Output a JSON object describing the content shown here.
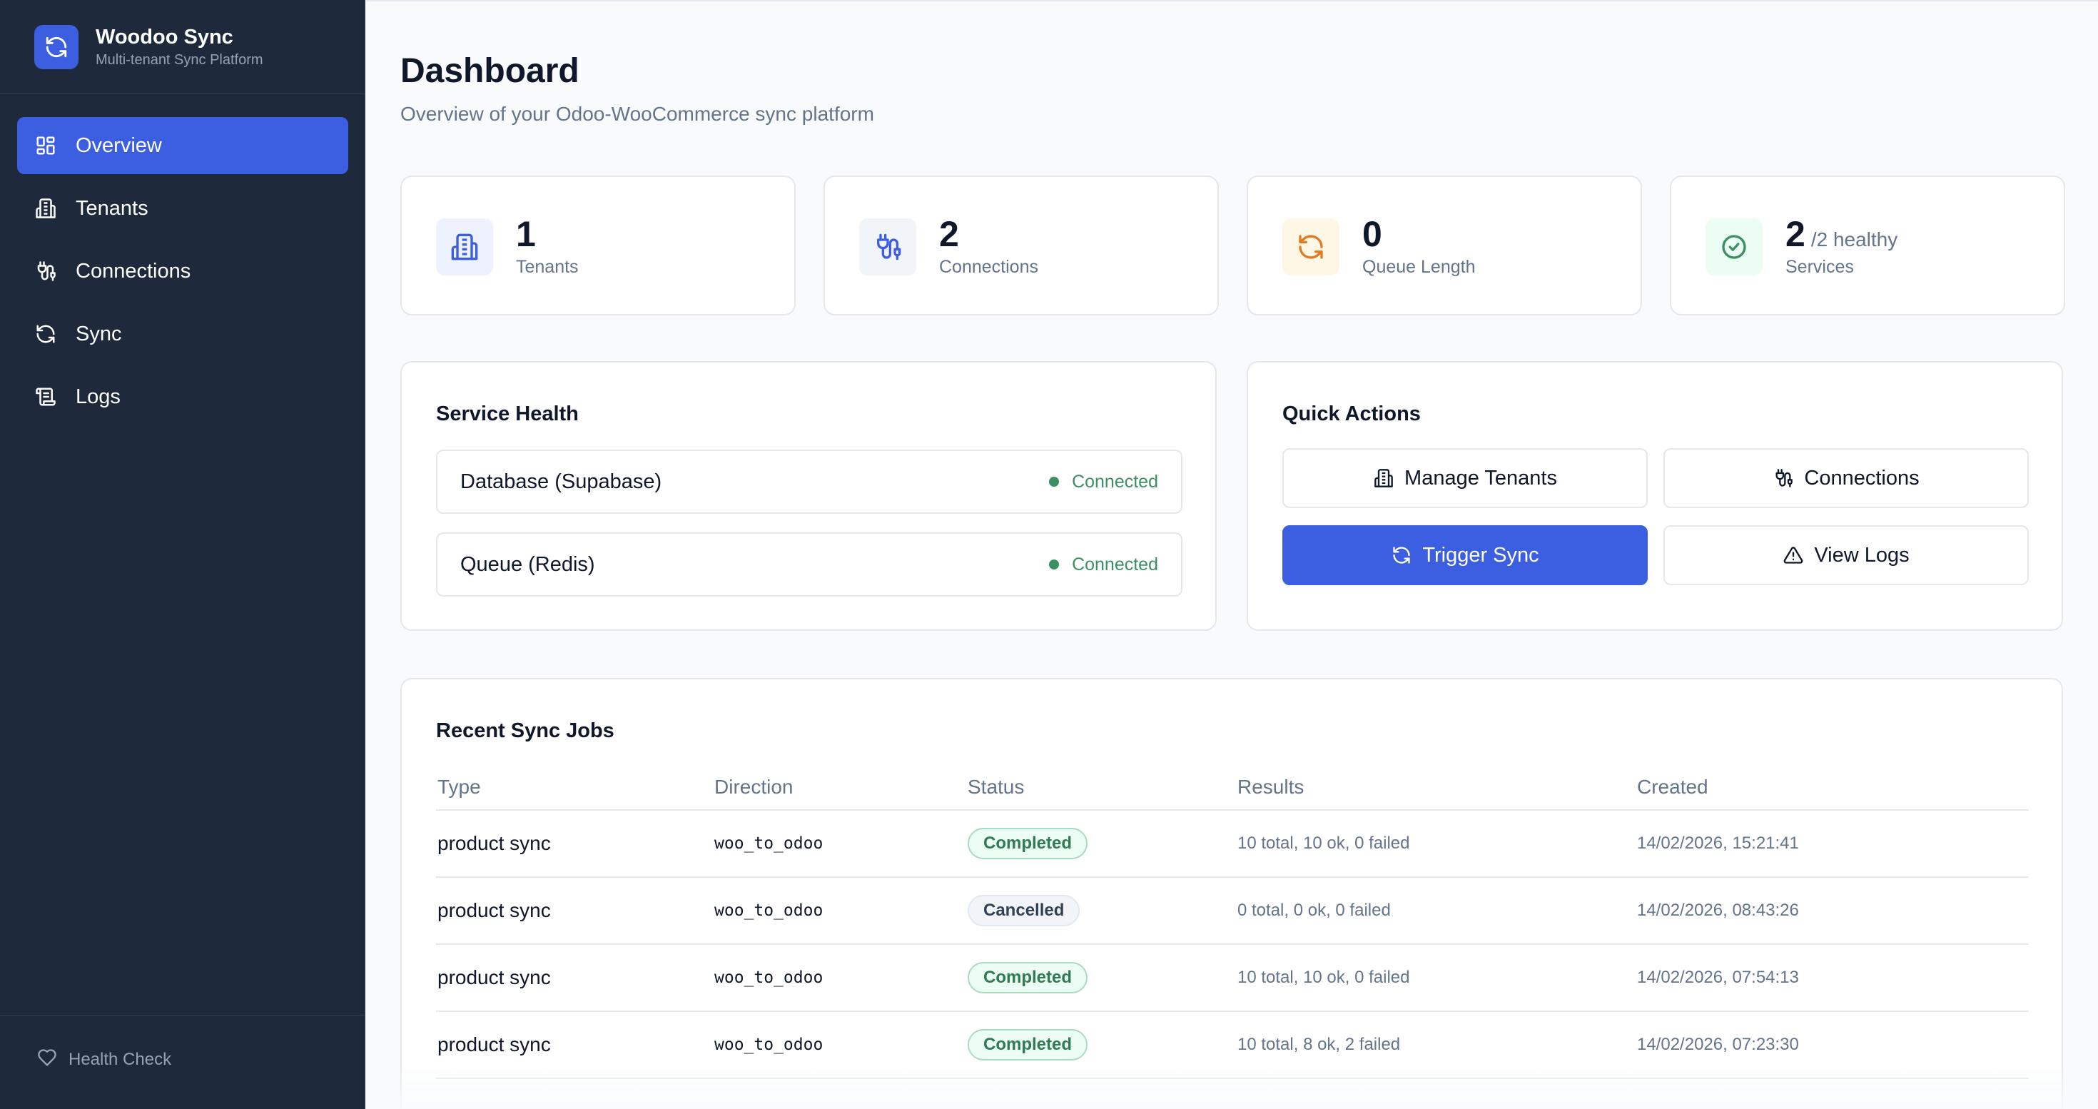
{
  "app": {
    "title": "Woodoo Sync",
    "subtitle": "Multi-tenant Sync Platform",
    "accent": "#3b5fe0",
    "sidebar_bg": "#1e293b"
  },
  "sidebar": {
    "items": [
      {
        "label": "Overview",
        "icon": "overview-grid-icon",
        "active": true
      },
      {
        "label": "Tenants",
        "icon": "building-icon",
        "active": false
      },
      {
        "label": "Connections",
        "icon": "plug-icon",
        "active": false
      },
      {
        "label": "Sync",
        "icon": "refresh-icon",
        "active": false
      },
      {
        "label": "Logs",
        "icon": "scroll-icon",
        "active": false
      }
    ],
    "footer": {
      "label": "Health Check",
      "icon": "heart-icon"
    }
  },
  "header": {
    "title": "Dashboard",
    "subtitle": "Overview of your Odoo-WooCommerce sync platform"
  },
  "stats": [
    {
      "value": "1",
      "suffix": "",
      "label": "Tenants",
      "icon": "building-icon",
      "color": "#3b5fe0"
    },
    {
      "value": "2",
      "suffix": "",
      "label": "Connections",
      "icon": "plug-icon",
      "color": "#3b5fe0"
    },
    {
      "value": "0",
      "suffix": "",
      "label": "Queue Length",
      "icon": "refresh-icon",
      "color": "#e07b24"
    },
    {
      "value": "2",
      "suffix": "/2 healthy",
      "label": "Services",
      "icon": "check-circle-icon",
      "color": "#3b8f63"
    }
  ],
  "service_health": {
    "title": "Service Health",
    "services": [
      {
        "name": "Database (Supabase)",
        "status": "Connected"
      },
      {
        "name": "Queue (Redis)",
        "status": "Connected"
      }
    ],
    "status_color": "#3b8f63"
  },
  "quick_actions": {
    "title": "Quick Actions",
    "buttons": [
      {
        "label": "Manage Tenants",
        "icon": "building-icon",
        "primary": false
      },
      {
        "label": "Connections",
        "icon": "plug-icon",
        "primary": false
      },
      {
        "label": "Trigger Sync",
        "icon": "refresh-icon",
        "primary": true
      },
      {
        "label": "View Logs",
        "icon": "warning-icon",
        "primary": false
      }
    ]
  },
  "recent_jobs": {
    "title": "Recent Sync Jobs",
    "columns": [
      "Type",
      "Direction",
      "Status",
      "Results",
      "Created"
    ],
    "rows": [
      {
        "type": "product sync",
        "direction": "woo_to_odoo",
        "status": "Completed",
        "results": "10 total, 10 ok, 0 failed",
        "created": "14/02/2026, 15:21:41"
      },
      {
        "type": "product sync",
        "direction": "woo_to_odoo",
        "status": "Cancelled",
        "results": "0 total, 0 ok, 0 failed",
        "created": "14/02/2026, 08:43:26"
      },
      {
        "type": "product sync",
        "direction": "woo_to_odoo",
        "status": "Completed",
        "results": "10 total, 10 ok, 0 failed",
        "created": "14/02/2026, 07:54:13"
      },
      {
        "type": "product sync",
        "direction": "woo_to_odoo",
        "status": "Completed",
        "results": "10 total, 8 ok, 2 failed",
        "created": "14/02/2026, 07:23:30"
      }
    ]
  }
}
